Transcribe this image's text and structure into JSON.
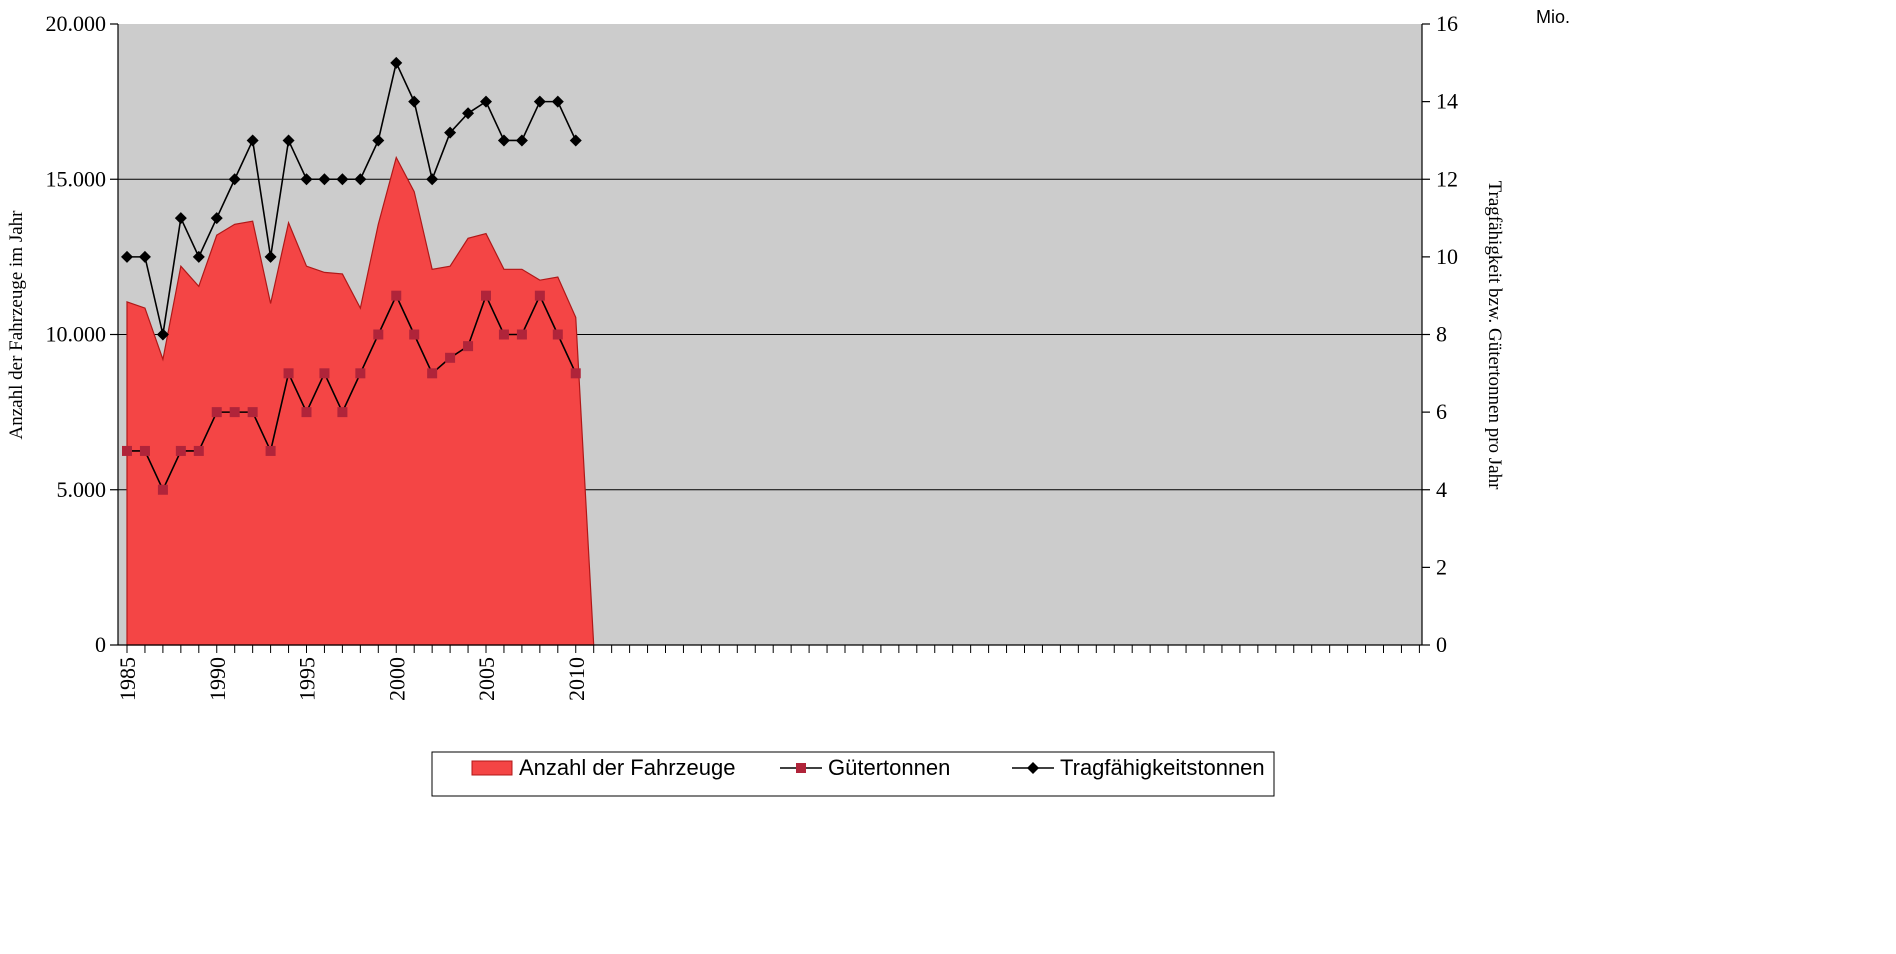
{
  "chart_data": {
    "type": "area",
    "y_left_label": "Anzahl der Fahrzeuge im Jahr",
    "y_right_label": "Tragfähigkeit bzw. Gütertonnen pro Jahr",
    "y_right_unit": "Mio.",
    "y_left_ticks": [
      "0",
      "5.000",
      "10.000",
      "15.000",
      "20.000"
    ],
    "y_right_ticks": [
      "0",
      "2",
      "4",
      "6",
      "8",
      "10",
      "12",
      "14",
      "16"
    ],
    "ylim_left": [
      0,
      20000
    ],
    "ylim_right": [
      0,
      16
    ],
    "x_tick_labels": [
      "1985",
      "1990",
      "1995",
      "2000",
      "2005",
      "2010"
    ],
    "x_range": [
      1985,
      2057
    ],
    "grid": "horizontal",
    "legend_position": "bottom",
    "colors": {
      "plot_background": "#cccccc",
      "area_fill": "#f44545",
      "area_stroke": "#b01818",
      "gueter_marker": "#b0243a",
      "line": "#000000"
    },
    "series": [
      {
        "name": "Anzahl der Fahrzeuge",
        "kind": "area",
        "axis": "left",
        "x": [
          1985,
          1986,
          1987,
          1988,
          1989,
          1990,
          1991,
          1992,
          1993,
          1994,
          1995,
          1996,
          1997,
          1998,
          1999,
          2000,
          2001,
          2002,
          2003,
          2004,
          2005,
          2006,
          2007,
          2008,
          2009,
          2010,
          2011
        ],
        "values": [
          11050,
          10850,
          9200,
          12200,
          11550,
          13200,
          13550,
          13650,
          11000,
          13600,
          12200,
          12000,
          11950,
          10850,
          13550,
          15700,
          14600,
          12100,
          12200,
          13100,
          13250,
          12100,
          12100,
          11750,
          11850,
          10550,
          0
        ]
      },
      {
        "name": "Gütertonnen",
        "kind": "line",
        "axis": "right",
        "marker": "square",
        "x": [
          1985,
          1986,
          1987,
          1988,
          1989,
          1990,
          1991,
          1992,
          1993,
          1994,
          1995,
          1996,
          1997,
          1998,
          1999,
          2000,
          2001,
          2002,
          2003,
          2004,
          2005,
          2006,
          2007,
          2008,
          2009,
          2010
        ],
        "values": [
          5,
          5,
          4,
          5,
          5,
          6,
          6,
          6,
          5,
          7,
          6,
          7,
          6,
          7,
          8,
          9,
          8,
          7,
          7.4,
          7.7,
          9,
          8,
          8,
          9,
          8,
          7
        ]
      },
      {
        "name": "Tragfähigkeitstonnen",
        "kind": "line",
        "axis": "right",
        "marker": "diamond",
        "x": [
          1985,
          1986,
          1987,
          1988,
          1989,
          1990,
          1991,
          1992,
          1993,
          1994,
          1995,
          1996,
          1997,
          1998,
          1999,
          2000,
          2001,
          2002,
          2003,
          2004,
          2005,
          2006,
          2007,
          2008,
          2009,
          2010
        ],
        "values": [
          10,
          10,
          8,
          11,
          10,
          11,
          12,
          13,
          10,
          13,
          12,
          12,
          12,
          12,
          13,
          15,
          14,
          12,
          13.2,
          13.7,
          14,
          13,
          13,
          14,
          14,
          13
        ]
      }
    ]
  }
}
